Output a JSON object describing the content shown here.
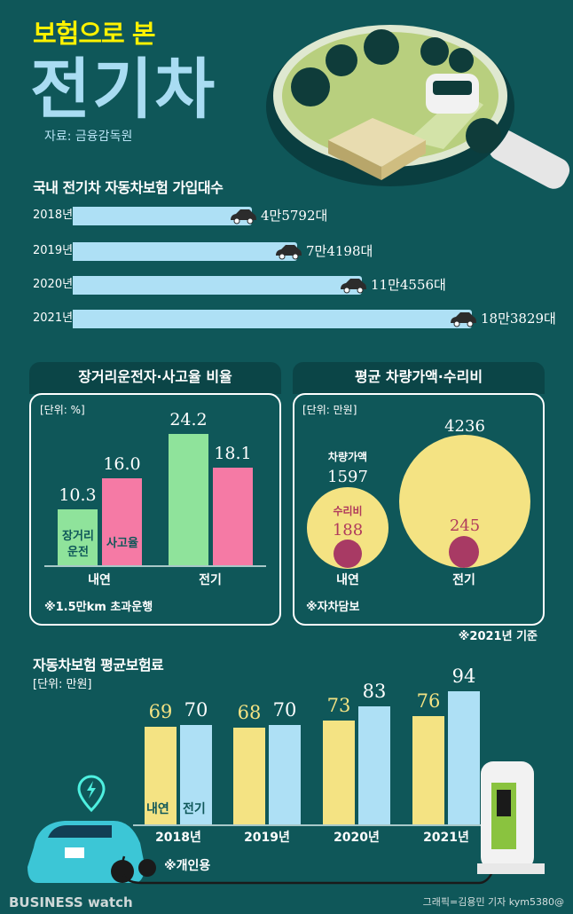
{
  "header": {
    "subtitle": "보험으로 본",
    "title": "전기차",
    "source": "자료: 금융감독원"
  },
  "colors": {
    "background": "#0f5759",
    "green": "#8fe39b",
    "pink": "#f57aa5",
    "yellow": "#f4e383",
    "lightblue": "#aee0f5",
    "maroon": "#a83a64"
  },
  "chart_data": [
    {
      "type": "bar",
      "orientation": "horizontal",
      "title": "국내 전기차 자동차보험 가입대수",
      "categories": [
        "2018년",
        "2019년",
        "2020년",
        "2021년"
      ],
      "values": [
        45792,
        74198,
        114556,
        183829
      ],
      "labels": [
        "4만5792대",
        "7만4198대",
        "11만4556대",
        "18만3829대"
      ]
    },
    {
      "type": "bar",
      "title": "장거리운전자·사고율 비율",
      "unit": "[단위: %]",
      "categories": [
        "내연",
        "전기"
      ],
      "series": [
        {
          "name": "장거리 운전",
          "values": [
            10.3,
            24.2
          ],
          "labels": [
            "10.3",
            "24.2"
          ]
        },
        {
          "name": "사고율",
          "values": [
            16.0,
            18.1
          ],
          "labels": [
            "16.0",
            "18.1"
          ]
        }
      ],
      "legend_inline": [
        "장거리",
        "운전",
        "사고율"
      ],
      "note": "※1.5만km 초과운행",
      "ylim": [
        0,
        26
      ]
    },
    {
      "type": "bubble",
      "title": "평균 차량가액·수리비",
      "unit": "[단위: 만원]",
      "categories": [
        "내연",
        "전기"
      ],
      "series": [
        {
          "name": "차량가액",
          "values": [
            1597,
            4236
          ],
          "labels": [
            "1597",
            "4236"
          ]
        },
        {
          "name": "수리비",
          "values": [
            188,
            245
          ],
          "labels": [
            "188",
            "245"
          ]
        }
      ],
      "note": "※자차담보",
      "footnote": "※2021년 기준"
    },
    {
      "type": "bar",
      "title": "자동차보험 평균보험료",
      "unit": "[단위: 만원]",
      "categories": [
        "2018년",
        "2019년",
        "2020년",
        "2021년"
      ],
      "series": [
        {
          "name": "내연",
          "values": [
            69,
            68,
            73,
            76
          ],
          "labels": [
            "69",
            "68",
            "73",
            "76"
          ]
        },
        {
          "name": "전기",
          "values": [
            70,
            70,
            83,
            94
          ],
          "labels": [
            "70",
            "70",
            "83",
            "94"
          ]
        }
      ],
      "note": "※개인용",
      "ylim": [
        0,
        100
      ]
    }
  ],
  "footer": {
    "logo": "BUSINESS watch",
    "credit": "그래픽=김용민 기자 kym5380@"
  }
}
